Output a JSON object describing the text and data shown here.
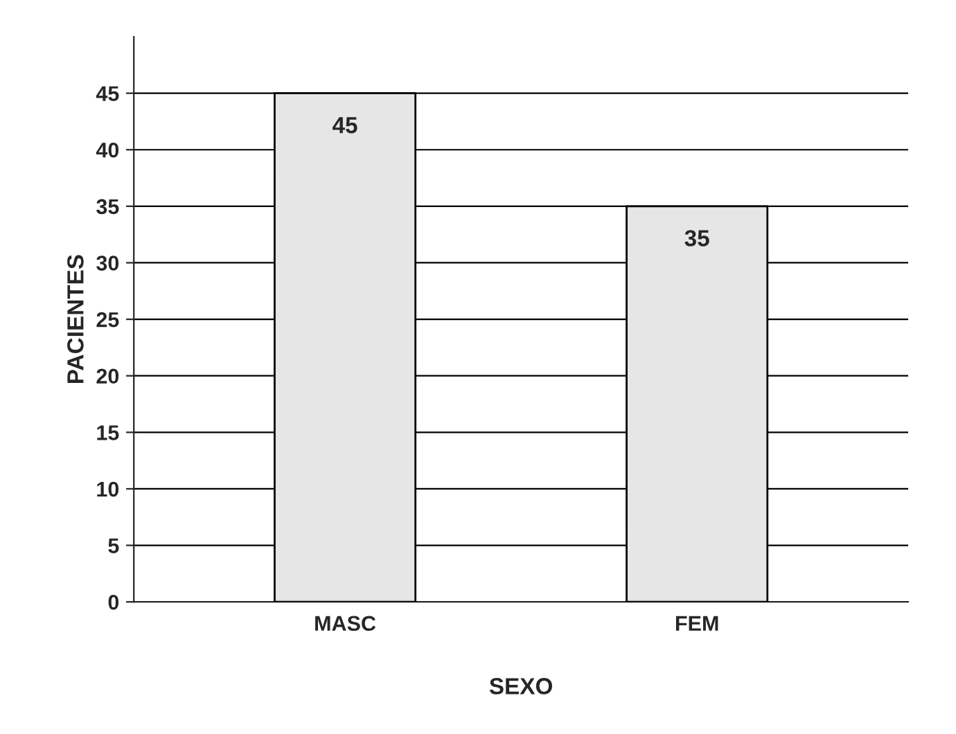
{
  "chart_data": {
    "type": "bar",
    "xlabel": "SEXO",
    "ylabel": "PACIENTES",
    "categories": [
      "MASC",
      "FEM"
    ],
    "values": [
      45,
      35
    ],
    "color": "#e6e6e6",
    "ylim": [
      0,
      50
    ],
    "yticks": [
      0,
      5,
      10,
      15,
      20,
      25,
      30,
      35,
      40,
      45
    ],
    "grid": "y",
    "data_labels": true
  }
}
